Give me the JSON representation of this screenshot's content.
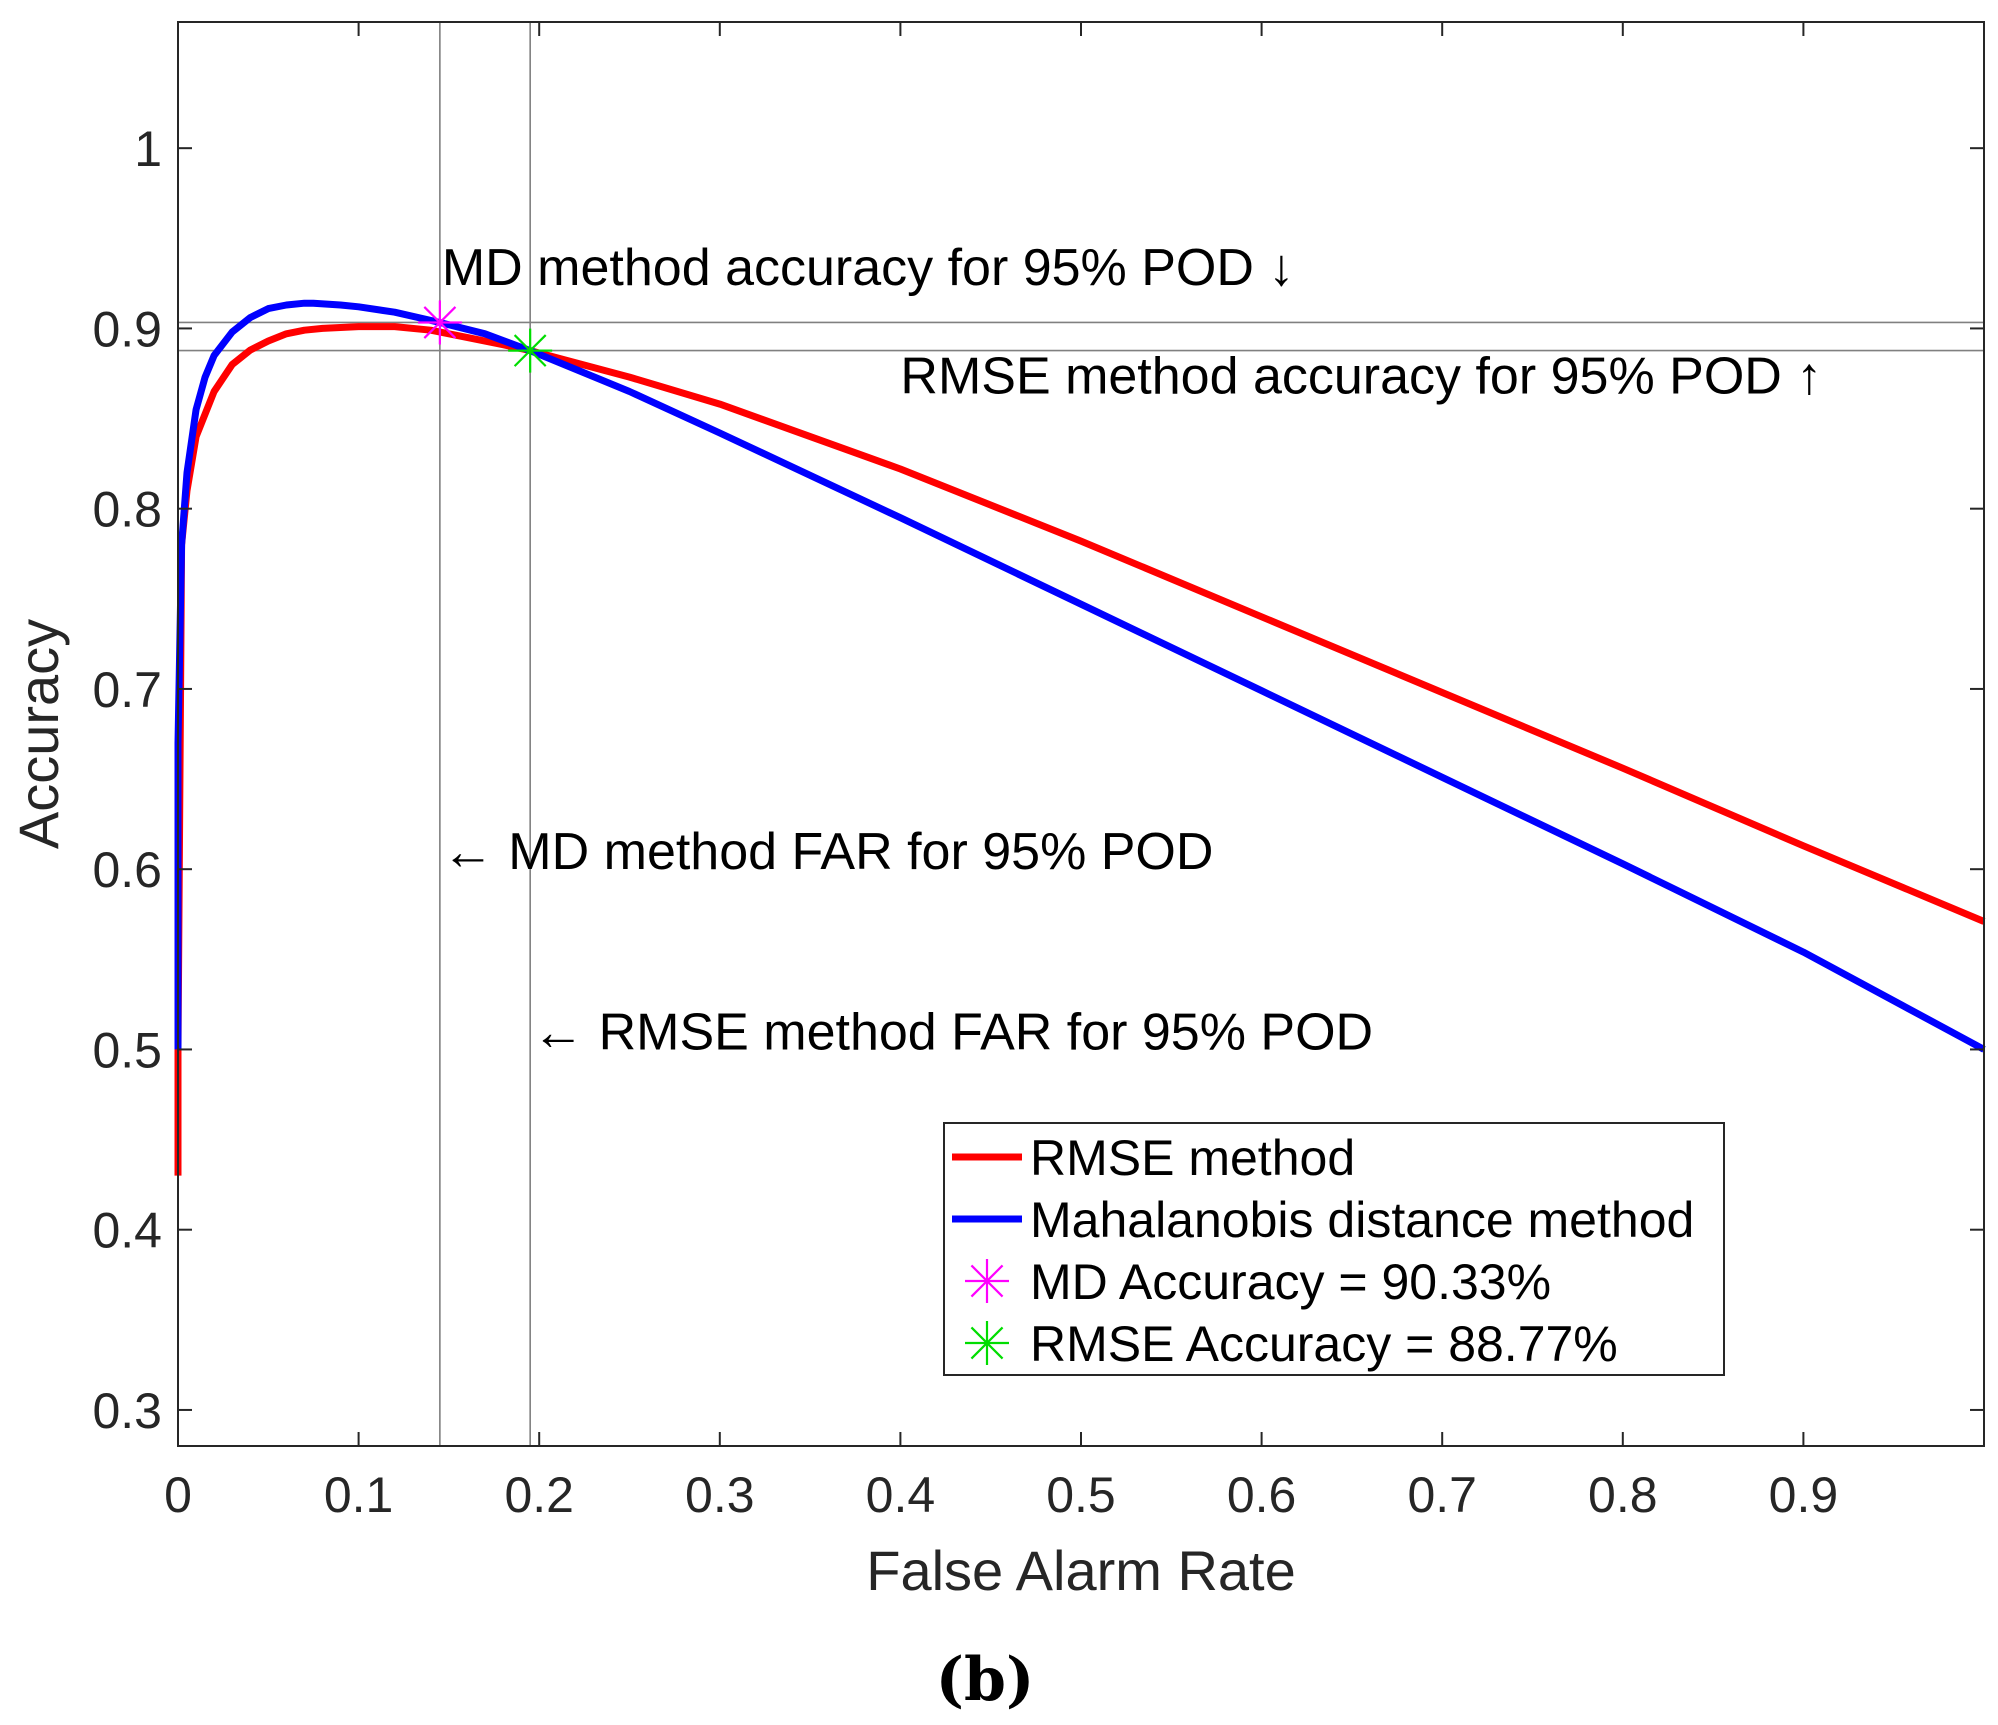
{
  "chart_data": {
    "type": "line",
    "title": "",
    "xlabel": "False Alarm Rate",
    "ylabel": "Accuracy",
    "xlim": [
      0,
      1
    ],
    "ylim": [
      0.28,
      1.07
    ],
    "xticks": [
      0,
      0.1,
      0.2,
      0.3,
      0.4,
      0.5,
      0.6,
      0.7,
      0.8,
      0.9
    ],
    "xtick_labels": [
      "0",
      "0.1",
      "0.2",
      "0.3",
      "0.4",
      "0.5",
      "0.6",
      "0.7",
      "0.8",
      "0.9"
    ],
    "yticks": [
      0.3,
      0.4,
      0.5,
      0.6,
      0.7,
      0.8,
      0.9,
      1.0
    ],
    "ytick_labels": [
      "0.3",
      "0.4",
      "0.5",
      "0.6",
      "0.7",
      "0.8",
      "0.9",
      "1"
    ],
    "grid": false,
    "series": [
      {
        "name": "RMSE method",
        "color": "#ff0000",
        "x": [
          0,
          0,
          0.002,
          0.005,
          0.01,
          0.02,
          0.03,
          0.04,
          0.05,
          0.06,
          0.07,
          0.08,
          0.1,
          0.12,
          0.14,
          0.16,
          0.18,
          0.195,
          0.25,
          0.3,
          0.4,
          0.5,
          0.6,
          0.7,
          0.8,
          0.9,
          1.0
        ],
        "y": [
          0.43,
          0.5,
          0.78,
          0.81,
          0.84,
          0.865,
          0.88,
          0.888,
          0.893,
          0.897,
          0.899,
          0.9,
          0.901,
          0.901,
          0.899,
          0.895,
          0.891,
          0.8877,
          0.873,
          0.858,
          0.822,
          0.782,
          0.74,
          0.698,
          0.656,
          0.613,
          0.571
        ]
      },
      {
        "name": "Mahalanobis distance method",
        "color": "#0000ff",
        "x": [
          0,
          0,
          0.002,
          0.005,
          0.01,
          0.015,
          0.02,
          0.03,
          0.04,
          0.05,
          0.06,
          0.07,
          0.075,
          0.09,
          0.1,
          0.12,
          0.145,
          0.17,
          0.195,
          0.25,
          0.3,
          0.4,
          0.5,
          0.6,
          0.7,
          0.8,
          0.9,
          1.0
        ],
        "y": [
          0.5,
          0.67,
          0.78,
          0.82,
          0.855,
          0.873,
          0.885,
          0.898,
          0.906,
          0.911,
          0.913,
          0.914,
          0.914,
          0.913,
          0.912,
          0.909,
          0.9033,
          0.897,
          0.8877,
          0.865,
          0.842,
          0.795,
          0.747,
          0.699,
          0.651,
          0.603,
          0.554,
          0.5
        ]
      }
    ],
    "markers": [
      {
        "name": "MD Accuracy = 90.33%",
        "x": 0.145,
        "y": 0.9033,
        "color": "#ff00ff"
      },
      {
        "name": "RMSE Accuracy = 88.77%",
        "x": 0.195,
        "y": 0.8877,
        "color": "#00dd00"
      }
    ],
    "reference_lines": {
      "horizontal": [
        0.9033,
        0.8877
      ],
      "vertical": [
        0.145,
        0.195
      ],
      "color": "#808080"
    },
    "annotations": [
      {
        "text": "MD method accuracy for 95% POD ↓",
        "x": 0.145,
        "y": 0.924
      },
      {
        "text": "RMSE method accuracy for 95% POD ↑",
        "x": 0.4,
        "y": 0.864
      },
      {
        "text": "← MD method FAR for 95% POD",
        "x": 0.145,
        "y": 0.6
      },
      {
        "text": "← RMSE method FAR for 95% POD",
        "x": 0.195,
        "y": 0.5
      }
    ],
    "legend": {
      "position": "bottom-right",
      "entries": [
        {
          "label": "RMSE method",
          "type": "line",
          "color": "#ff0000"
        },
        {
          "label": "Mahalanobis distance method",
          "type": "line",
          "color": "#0000ff"
        },
        {
          "label": "MD Accuracy = 90.33%",
          "type": "marker",
          "color": "#ff00ff"
        },
        {
          "label": "RMSE Accuracy = 88.77%",
          "type": "marker",
          "color": "#00dd00"
        }
      ]
    },
    "caption": "(b)"
  }
}
